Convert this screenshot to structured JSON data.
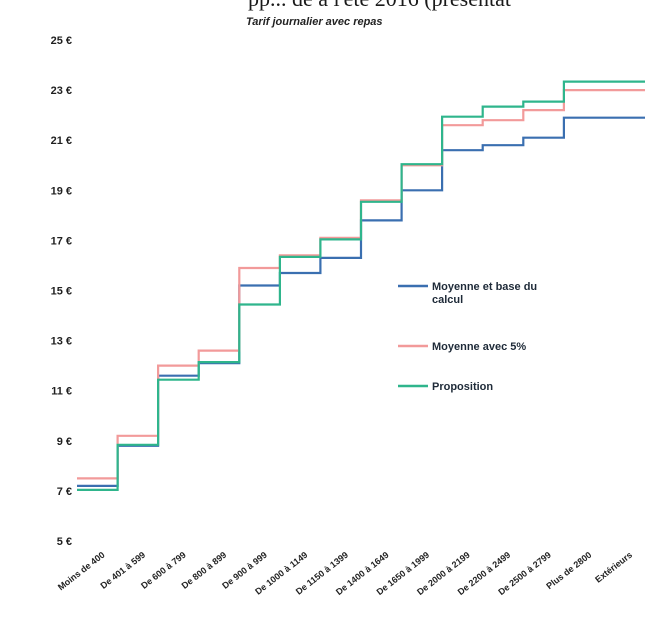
{
  "page": {
    "title_fragment": "pp... de à l'été 2016 (présentat"
  },
  "chart_data": {
    "type": "line",
    "subtitle": "Tarif journalier avec repas",
    "xlabel": "",
    "ylabel": "",
    "ylim": [
      5,
      25
    ],
    "y_ticks": [
      {
        "value": 25,
        "label": "25 €"
      },
      {
        "value": 23,
        "label": "23 €"
      },
      {
        "value": 21,
        "label": "21 €"
      },
      {
        "value": 19,
        "label": "19 €"
      },
      {
        "value": 17,
        "label": "17 €"
      },
      {
        "value": 15,
        "label": "15 €"
      },
      {
        "value": 13,
        "label": "13 €"
      },
      {
        "value": 11,
        "label": "11 €"
      },
      {
        "value": 9,
        "label": "9 €"
      },
      {
        "value": 7,
        "label": "7 €"
      },
      {
        "value": 5,
        "label": "5 €"
      }
    ],
    "categories": [
      "Moins de 400",
      "De 401 à 599",
      "De 600 à 799",
      "De 800 à 899",
      "De 900 à 999",
      "De 1000 à 1149",
      "De 1150 à 1399",
      "De 1400 à 1649",
      "De 1650 à 1999",
      "De 2000 à 2199",
      "De 2200 à 2499",
      "De 2500 à 2799",
      "Plus de 2800",
      "Extérieurs"
    ],
    "series": [
      {
        "name": "Moyenne et base du calcul",
        "color": "#3a6fb0",
        "values": [
          7.2,
          8.8,
          11.6,
          12.1,
          15.2,
          15.7,
          16.3,
          17.8,
          19.0,
          20.6,
          20.8,
          21.1,
          21.9,
          21.9
        ]
      },
      {
        "name": "Moyenne avec 5%",
        "color": "#f29a9a",
        "values": [
          7.5,
          9.2,
          12.0,
          12.6,
          15.9,
          16.4,
          17.1,
          18.6,
          20.0,
          21.6,
          21.8,
          22.2,
          23.0,
          23.0
        ]
      },
      {
        "name": "Proposition",
        "color": "#2fb58c",
        "values": [
          7.1,
          8.9,
          11.5,
          12.2,
          14.5,
          16.4,
          17.1,
          18.6,
          20.1,
          22.0,
          22.4,
          22.6,
          23.4,
          23.4
        ]
      }
    ],
    "legend": {
      "position": "right"
    },
    "grid": false
  }
}
